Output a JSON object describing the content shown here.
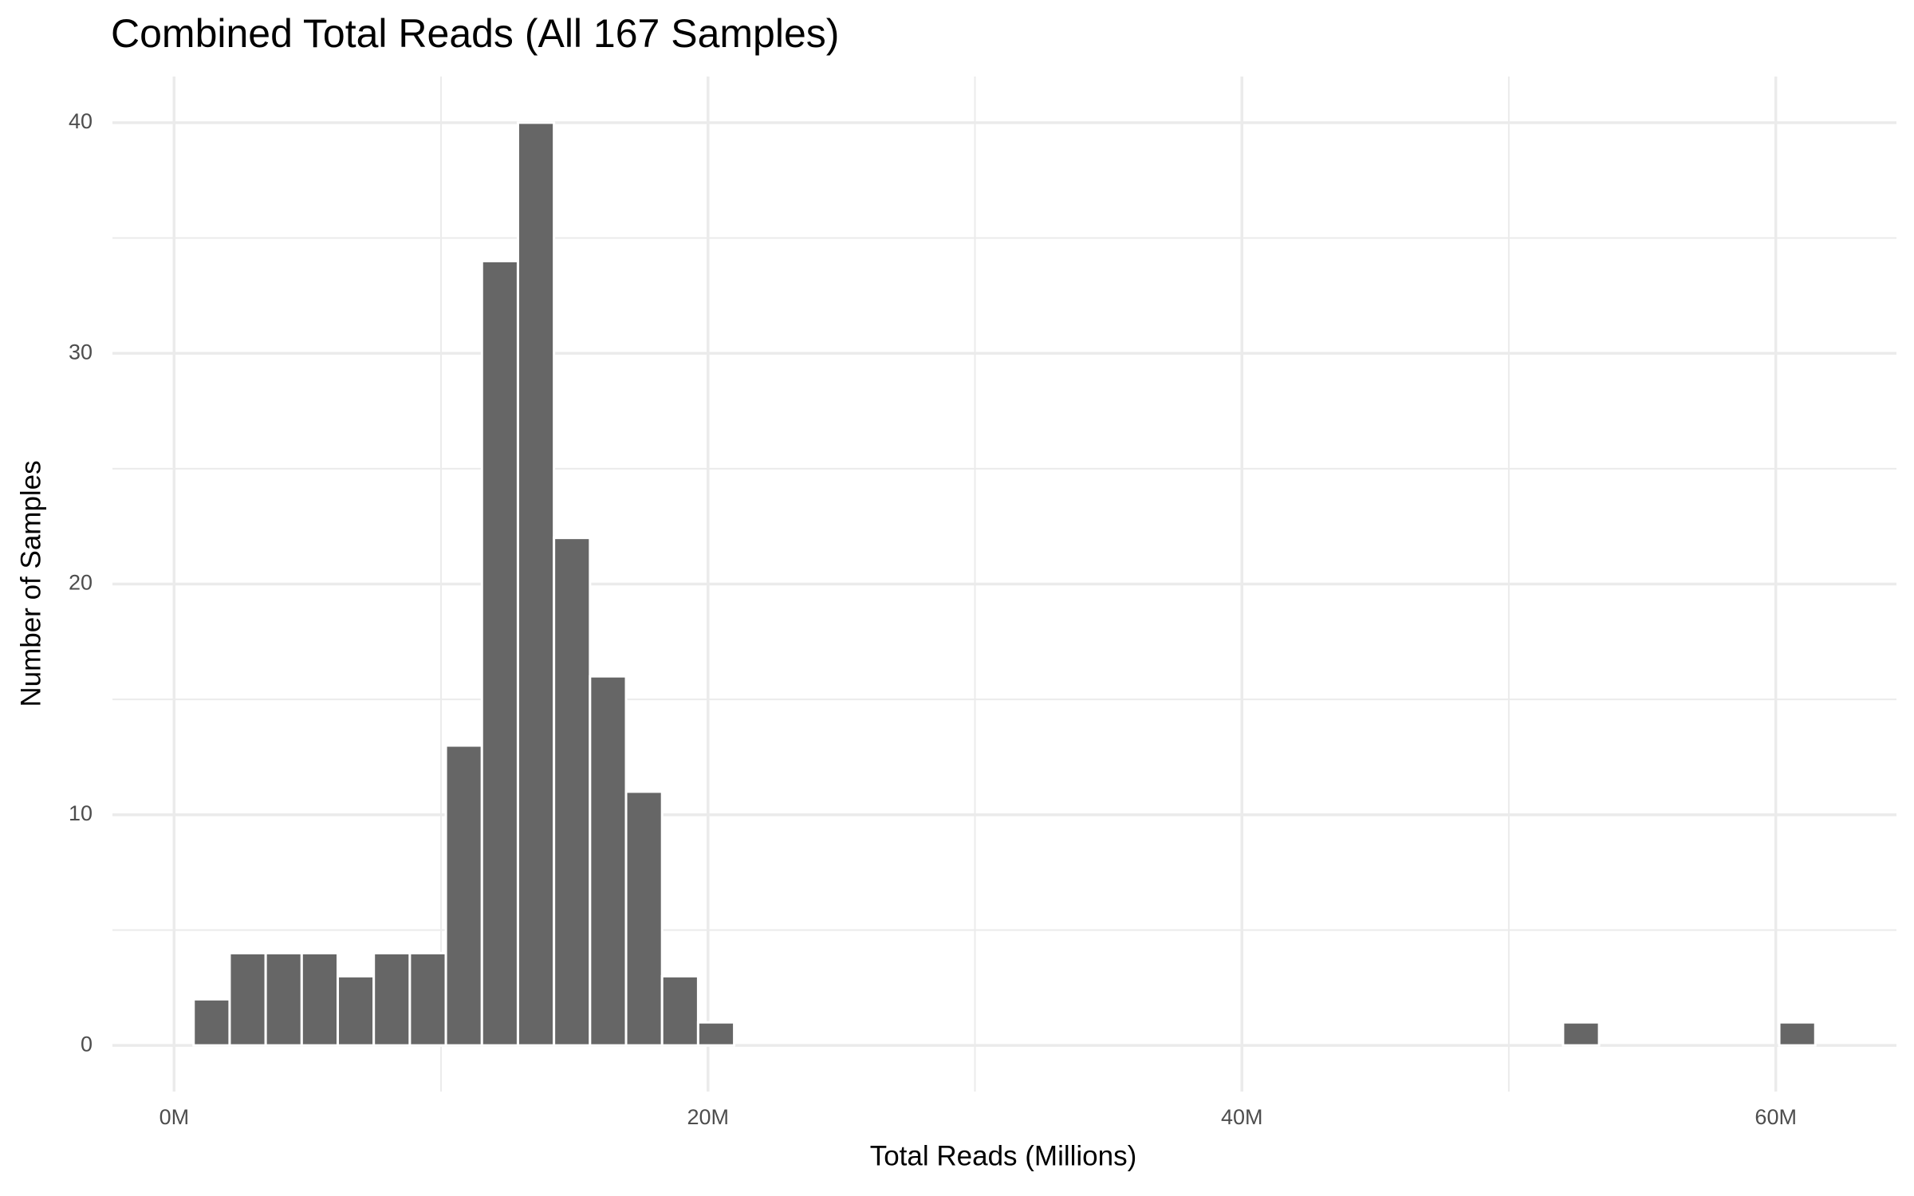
{
  "chart_data": {
    "type": "histogram",
    "title": "Combined Total Reads (All 167 Samples)",
    "x_label": "Total Reads (Millions)",
    "y_label": "Number of Samples",
    "bins": [
      0.73,
      2.08,
      3.43,
      4.78,
      6.13,
      7.48,
      8.83,
      10.18,
      11.53,
      12.88,
      14.23,
      15.58,
      16.93,
      18.28,
      19.63,
      20.98,
      22.33,
      23.68,
      25.03,
      26.38,
      27.73,
      29.08,
      30.43,
      31.78,
      33.13,
      34.48,
      35.83,
      37.18,
      38.53,
      39.88,
      41.23,
      42.58,
      43.93,
      45.28,
      46.63,
      47.98,
      49.33,
      50.68,
      52.03,
      53.38,
      54.73,
      56.08,
      57.43,
      58.78,
      60.13,
      61.48
    ],
    "values": [
      2,
      4,
      4,
      4,
      3,
      4,
      4,
      13,
      34,
      40,
      22,
      16,
      11,
      3,
      1,
      0,
      0,
      0,
      0,
      0,
      0,
      0,
      0,
      0,
      0,
      0,
      0,
      0,
      0,
      0,
      0,
      0,
      0,
      0,
      0,
      0,
      0,
      0,
      1,
      0,
      0,
      0,
      0,
      0,
      1
    ],
    "color": "#666666",
    "xlim": [
      -2.31,
      64.52
    ],
    "ylim": [
      -2,
      42
    ],
    "xticks": [
      {
        "value": 0,
        "label": "0M"
      },
      {
        "value": 20,
        "label": "20M"
      },
      {
        "value": 40,
        "label": "40M"
      },
      {
        "value": 60,
        "label": "60M"
      }
    ],
    "yticks": [
      0,
      10,
      20,
      30,
      40
    ],
    "x_minor_grid": [
      10,
      30,
      50
    ],
    "y_minor_grid": [
      5,
      15,
      25,
      35
    ],
    "grid": true
  }
}
